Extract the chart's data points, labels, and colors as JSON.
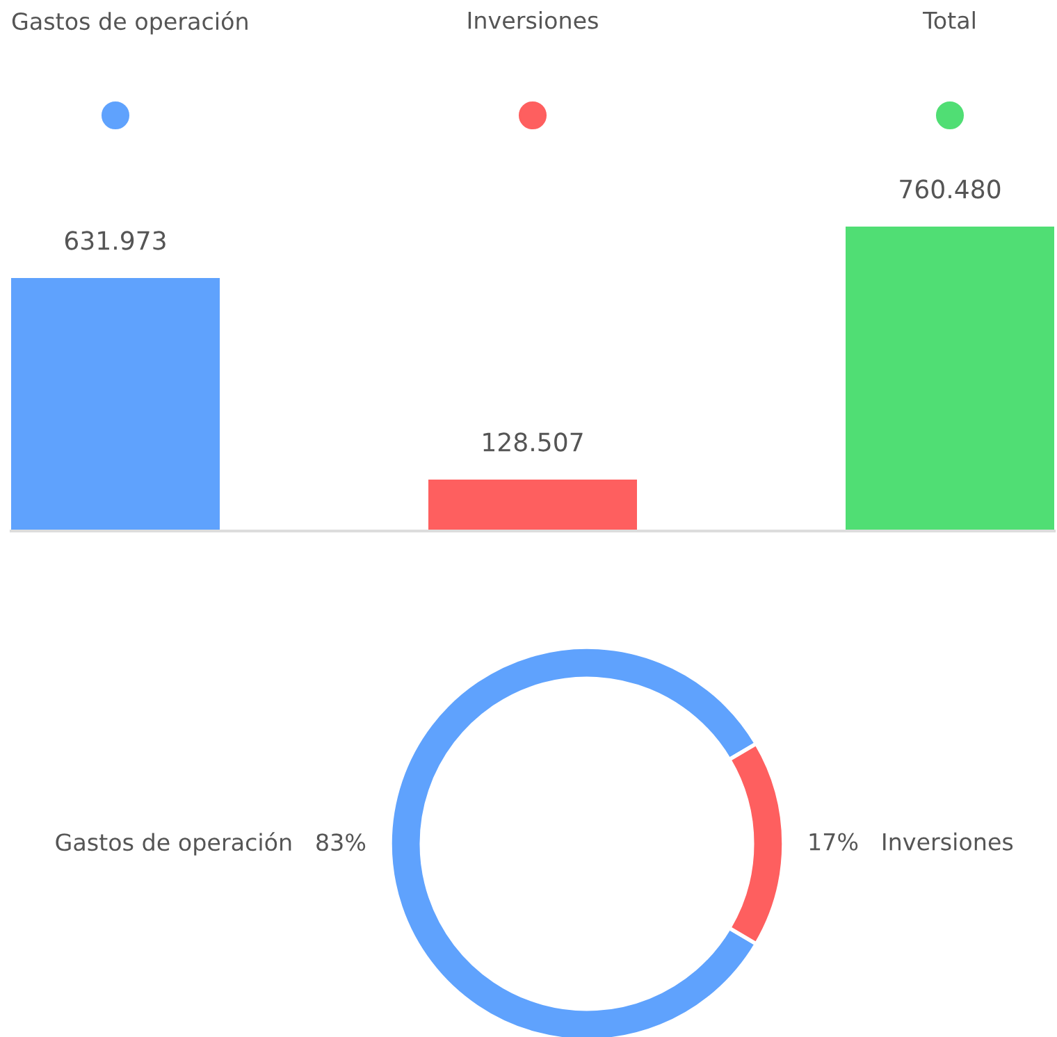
{
  "chart_data": [
    {
      "type": "bar",
      "categories": [
        "Gastos de operación",
        "Inversiones",
        "Total"
      ],
      "values": [
        631973,
        128507,
        760480
      ],
      "colors": [
        "#5fa2fd",
        "#fe5f5f",
        "#50de74"
      ],
      "value_labels": [
        "631.973",
        "128.507",
        "760.480"
      ],
      "legend": false
    },
    {
      "type": "donut",
      "categories": [
        "Gastos de operación",
        "Inversiones"
      ],
      "values": [
        83,
        17
      ],
      "colors": [
        "#5fa2fd",
        "#fe5f5f"
      ],
      "value_labels": [
        "83%",
        "17%"
      ],
      "legend": false
    }
  ]
}
